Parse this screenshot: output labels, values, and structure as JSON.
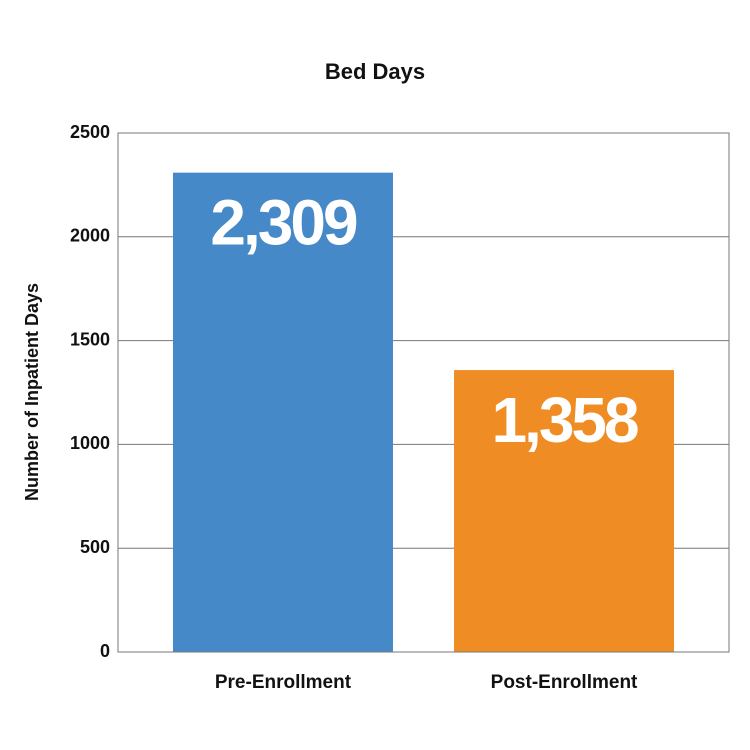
{
  "chart_data": {
    "type": "bar",
    "title": "Bed Days",
    "y_label": "Number of Inpatient Days",
    "categories": [
      "Pre-Enrollment",
      "Post-Enrollment"
    ],
    "values": [
      2309,
      1358
    ],
    "value_labels": [
      "2,309",
      "1,358"
    ],
    "colors": [
      "#4589c8",
      "#ef8c23"
    ],
    "ylim": [
      0,
      2500
    ],
    "yticks": [
      0,
      500,
      1000,
      1500,
      2000,
      2500
    ],
    "grid": true
  }
}
